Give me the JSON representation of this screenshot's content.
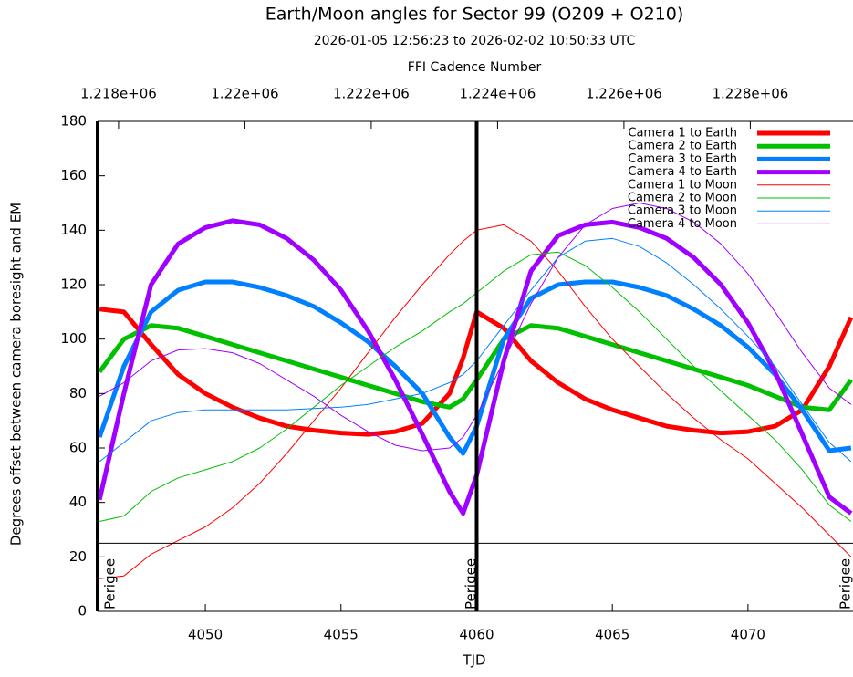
{
  "chart_data": {
    "type": "line",
    "title": "Earth/Moon angles for Sector 99 (O209 + O210)",
    "subtitle": "2026-01-05 12:56:23 to 2026-02-02 10:50:33 UTC",
    "x2_label": "FFI Cadence Number",
    "x_label": "TJD",
    "y_label": "Degrees offset between camera boresight and EM",
    "xlim": [
      4046.03,
      4073.87
    ],
    "xticks": [
      4050,
      4055,
      4060,
      4065,
      4070
    ],
    "x2lim": [
      1217669,
      1229626
    ],
    "x2ticks": [
      {
        "value": 1218000,
        "label": "1.218e+06"
      },
      {
        "value": 1220000,
        "label": "1.22e+06"
      },
      {
        "value": 1222000,
        "label": "1.222e+06"
      },
      {
        "value": 1224000,
        "label": "1.224e+06"
      },
      {
        "value": 1226000,
        "label": "1.226e+06"
      },
      {
        "value": 1228000,
        "label": "1.228e+06"
      }
    ],
    "ylim": [
      0,
      180
    ],
    "yticks": [
      0,
      20,
      40,
      60,
      80,
      100,
      120,
      140,
      160,
      180
    ],
    "hline": 25,
    "vlines": [
      4060
    ],
    "annotations": [
      {
        "text": "Perigee",
        "x": 4046.5
      },
      {
        "text": "Perigee",
        "x": 4059.8
      },
      {
        "text": "Perigee",
        "x": 4073.6
      }
    ],
    "legend": "top-right",
    "x": [
      4046.1,
      4047,
      4048,
      4049,
      4050,
      4051,
      4052,
      4053,
      4054,
      4055,
      4056,
      4057,
      4058,
      4059,
      4059.5,
      4060,
      4061,
      4062,
      4063,
      4064,
      4065,
      4066,
      4067,
      4068,
      4069,
      4070,
      4071,
      4072,
      4073,
      4073.8
    ],
    "series": [
      {
        "name": "Camera 1 to Earth",
        "color": "#ff0000",
        "line_width": 5,
        "values": [
          111,
          110,
          98,
          87,
          80,
          75,
          71,
          68,
          66.5,
          65.5,
          65,
          66,
          69,
          80,
          93,
          110,
          104,
          92,
          84,
          78,
          74,
          71,
          68,
          66.5,
          65.5,
          66,
          68,
          74,
          90,
          108
        ]
      },
      {
        "name": "Camera 2 to Earth",
        "color": "#00c000",
        "line_width": 5,
        "values": [
          88,
          100,
          105,
          104,
          101,
          98,
          95,
          92,
          89,
          86,
          83,
          80,
          77,
          75,
          78,
          85,
          100,
          105,
          104,
          101,
          98,
          95,
          92,
          89,
          86,
          83,
          79,
          75,
          74,
          85
        ]
      },
      {
        "name": "Camera 3 to Earth",
        "color": "#0080ff",
        "line_width": 5,
        "values": [
          64,
          90,
          110,
          118,
          121,
          121,
          119,
          116,
          112,
          106,
          99,
          90,
          80,
          64,
          58,
          68,
          100,
          115,
          120,
          121,
          121,
          119,
          116,
          111,
          105,
          97,
          87,
          74,
          59,
          60
        ]
      },
      {
        "name": "Camera 4 to Earth",
        "color": "#a000ff",
        "line_width": 5,
        "values": [
          41,
          80,
          120,
          135,
          141,
          143.5,
          142,
          137,
          129,
          118,
          103,
          85,
          65,
          44,
          36,
          50,
          92,
          125,
          138,
          142,
          143,
          141,
          137,
          130,
          120,
          106,
          88,
          65,
          42,
          36
        ]
      },
      {
        "name": "Camera 1 to Moon",
        "color": "#ff0000",
        "line_width": 1,
        "values": [
          12,
          13,
          21,
          26,
          31,
          38,
          47,
          58,
          70,
          82,
          95,
          108,
          120,
          131,
          136,
          140,
          142,
          136,
          125,
          112,
          100,
          90,
          80,
          71,
          63,
          56,
          47,
          38,
          28,
          20
        ]
      },
      {
        "name": "Camera 2 to Moon",
        "color": "#00c000",
        "line_width": 1,
        "values": [
          33,
          35,
          44,
          49,
          52,
          55,
          60,
          67,
          75,
          83,
          90,
          97,
          103,
          110,
          113,
          117,
          125,
          131,
          132,
          127,
          119,
          110,
          100,
          90,
          81,
          72,
          63,
          52,
          39,
          33
        ]
      },
      {
        "name": "Camera 3 to Moon",
        "color": "#0080ff",
        "line_width": 1,
        "values": [
          55,
          62,
          70,
          73,
          74,
          74,
          74,
          74,
          74.5,
          75,
          76,
          78,
          80,
          84,
          87,
          92,
          105,
          118,
          130,
          136,
          137,
          134,
          128,
          120,
          111,
          101,
          90,
          76,
          62,
          55
        ]
      },
      {
        "name": "Camera 4 to Moon",
        "color": "#a000ff",
        "line_width": 1,
        "values": [
          79,
          84,
          92,
          96,
          96.5,
          95,
          91,
          85,
          79,
          72,
          66,
          61,
          59,
          60,
          64,
          72,
          92,
          113,
          130,
          142,
          148,
          150,
          148,
          143,
          135,
          124,
          110,
          95,
          82,
          76
        ]
      }
    ]
  }
}
